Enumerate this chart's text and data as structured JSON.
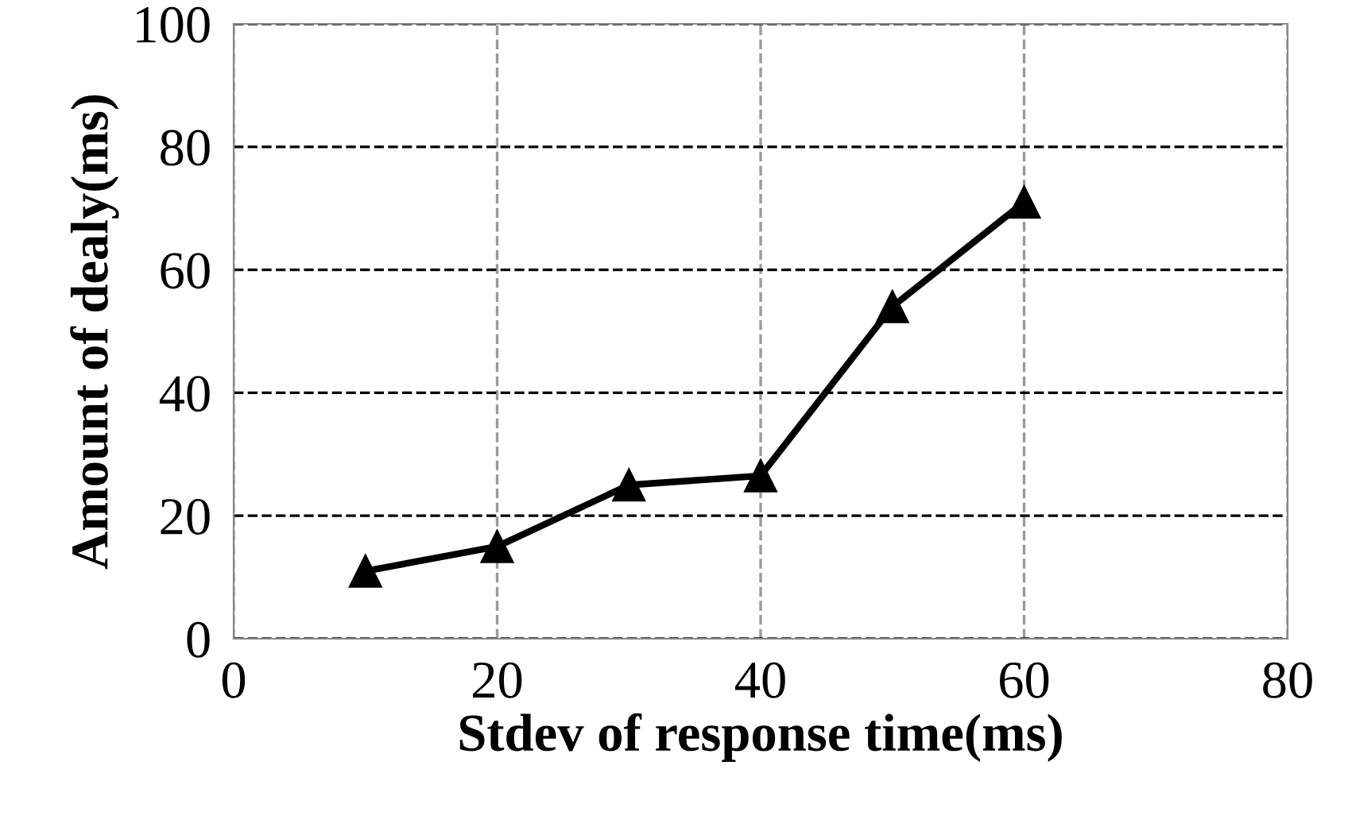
{
  "chart_data": {
    "type": "line",
    "xlabel": "Stdev of response time(ms)",
    "ylabel": "Amount of dealy(ms)",
    "x": [
      10,
      20,
      30,
      40,
      50,
      60
    ],
    "series": [
      {
        "color": "#000000",
        "values": [
          11,
          15,
          25,
          26.5,
          54,
          71
        ]
      }
    ],
    "xlim": [
      0,
      80
    ],
    "xticks": [
      0,
      20,
      40,
      60,
      80
    ],
    "ylim": [
      0,
      100
    ],
    "yticks": [
      0,
      20,
      40,
      60,
      80,
      100
    ],
    "grid": true,
    "marker": "triangle",
    "line_style": "solid"
  }
}
